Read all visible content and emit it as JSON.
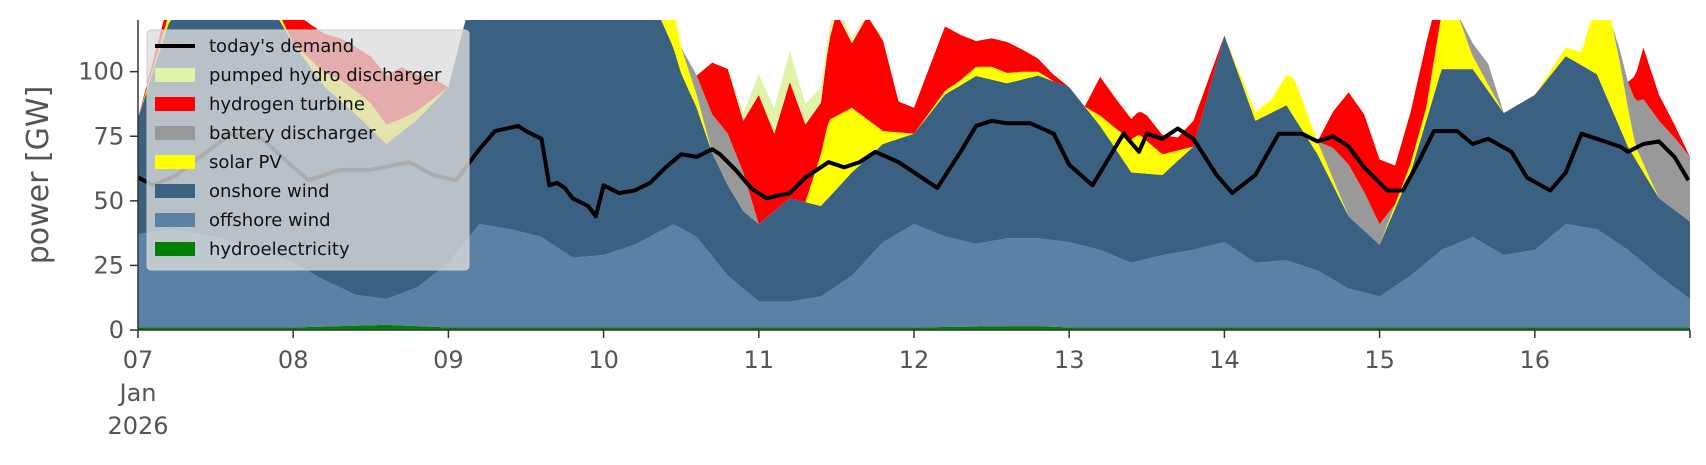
{
  "chart_data": {
    "type": "area",
    "ylabel": "power [GW]",
    "xlabel": "",
    "ylim": [
      0,
      120
    ],
    "yticks": [
      0,
      25,
      50,
      75,
      100
    ],
    "xlim": [
      7,
      17
    ],
    "xticks": [
      {
        "day": 7,
        "label": "07",
        "sub": [
          "Jan",
          "2026"
        ]
      },
      {
        "day": 8,
        "label": "08"
      },
      {
        "day": 9,
        "label": "09"
      },
      {
        "day": 10,
        "label": "10"
      },
      {
        "day": 11,
        "label": "11"
      },
      {
        "day": 12,
        "label": "12"
      },
      {
        "day": 13,
        "label": "13"
      },
      {
        "day": 14,
        "label": "14"
      },
      {
        "day": 15,
        "label": "15"
      },
      {
        "day": 16,
        "label": "16"
      }
    ],
    "legend_position": "top-left",
    "grid": false,
    "stack_order": [
      "hydroelectricity",
      "offshore wind",
      "onshore wind",
      "solar PV",
      "battery discharger",
      "hydrogen turbine",
      "pumped hydro discharger"
    ],
    "series": [
      {
        "name": "today's demand",
        "kind": "line",
        "color": "#000000",
        "x": [
          7.0,
          7.1,
          7.25,
          7.4,
          7.6,
          7.8,
          8.0,
          8.1,
          8.3,
          8.5,
          8.75,
          8.9,
          9.05,
          9.2,
          9.3,
          9.45,
          9.5,
          9.6,
          9.65,
          9.7,
          9.75,
          9.8,
          9.9,
          9.95,
          10.0,
          10.1,
          10.2,
          10.3,
          10.4,
          10.5,
          10.6,
          10.7,
          10.75,
          10.85,
          10.95,
          11.05,
          11.2,
          11.3,
          11.45,
          11.55,
          11.65,
          11.75,
          11.9,
          12.05,
          12.15,
          12.3,
          12.4,
          12.5,
          12.6,
          12.75,
          12.9,
          13.0,
          13.15,
          13.25,
          13.35,
          13.45,
          13.5,
          13.6,
          13.7,
          13.8,
          13.95,
          14.05,
          14.2,
          14.35,
          14.5,
          14.6,
          14.7,
          14.8,
          14.9,
          15.05,
          15.15,
          15.25,
          15.35,
          15.5,
          15.6,
          15.7,
          15.85,
          15.95,
          16.1,
          16.2,
          16.3,
          16.45,
          16.55,
          16.6,
          16.7,
          16.8,
          16.9,
          16.99
        ],
        "y": [
          59,
          56,
          60,
          67,
          76,
          74,
          63,
          58,
          62,
          62,
          65,
          60,
          58,
          70,
          77,
          79,
          77,
          74,
          56,
          57,
          55,
          51,
          48,
          44,
          56,
          53,
          54,
          57,
          63,
          68,
          67,
          70,
          68,
          62,
          55,
          51,
          53,
          59,
          65,
          63,
          65,
          69,
          65,
          59,
          55,
          69,
          79,
          81,
          80,
          80,
          76,
          64,
          56,
          66,
          76,
          69,
          76,
          74,
          78,
          74,
          60,
          53,
          60,
          76,
          76,
          73,
          75,
          71,
          63,
          54,
          54,
          65,
          77,
          77,
          72,
          74,
          69,
          59,
          54,
          61,
          76,
          73,
          71,
          69,
          72,
          73,
          67,
          58
        ]
      },
      {
        "name": "pumped hydro discharger",
        "color": "#dff4a8",
        "x": [
          7.0,
          7.3,
          7.6,
          7.8,
          8.0,
          10.5,
          10.8,
          10.9,
          11.0,
          11.1,
          11.2,
          11.3,
          11.45,
          11.6,
          11.8,
          17.0
        ],
        "y": [
          0,
          0,
          0,
          0,
          0,
          0,
          0,
          3,
          8,
          10,
          12,
          8,
          5,
          2,
          0,
          0
        ]
      },
      {
        "name": "hydrogen turbine",
        "color": "#ff0000",
        "x": [
          7.0,
          7.3,
          7.6,
          7.8,
          8.0,
          8.2,
          8.5,
          8.7,
          8.9,
          9.0,
          10.4,
          10.6,
          10.7,
          10.8,
          10.9,
          11.0,
          11.1,
          11.2,
          11.3,
          11.4,
          11.5,
          11.6,
          11.7,
          11.8,
          11.9,
          12.0,
          12.2,
          12.4,
          12.6,
          12.8,
          13.0,
          13.1,
          13.2,
          13.4,
          13.5,
          13.7,
          13.8,
          14.0,
          14.3,
          14.6,
          14.8,
          14.9,
          15.0,
          15.1,
          15.2,
          15.3,
          15.5,
          15.7,
          16.0,
          16.4,
          16.5,
          16.6,
          16.7,
          16.8,
          16.9,
          17.0
        ],
        "y": [
          0,
          8,
          12,
          10,
          12,
          15,
          18,
          20,
          8,
          0,
          0,
          0,
          20,
          25,
          20,
          50,
          30,
          45,
          30,
          20,
          40,
          25,
          40,
          35,
          12,
          10,
          25,
          10,
          12,
          5,
          0,
          0,
          15,
          8,
          10,
          5,
          10,
          0,
          0,
          0,
          28,
          30,
          25,
          15,
          20,
          25,
          0,
          0,
          0,
          0,
          0,
          0,
          20,
          10,
          5,
          0
        ]
      },
      {
        "name": "battery discharger",
        "color": "#999999",
        "x": [
          7.0,
          7.5,
          8.0,
          8.5,
          9.0,
          10.5,
          10.7,
          10.8,
          10.9,
          11.0,
          11.2,
          11.5,
          12.0,
          13.0,
          13.5,
          14.0,
          14.6,
          14.7,
          14.8,
          14.9,
          15.0,
          15.1,
          15.2,
          15.5,
          15.6,
          15.7,
          15.8,
          16.0,
          16.5,
          16.6,
          16.7,
          16.8,
          16.9,
          17.0
        ],
        "y": [
          0,
          0,
          0,
          0,
          0,
          0,
          15,
          20,
          15,
          0,
          0,
          0,
          0,
          0,
          0,
          0,
          0,
          12,
          20,
          15,
          8,
          0,
          0,
          0,
          5,
          8,
          0,
          0,
          0,
          10,
          25,
          30,
          28,
          25
        ]
      },
      {
        "name": "solar PV",
        "color": "#ffff00",
        "x": [
          7.0,
          7.3,
          7.5,
          7.8,
          8.0,
          8.3,
          8.5,
          8.7,
          9.0,
          10.3,
          10.4,
          10.5,
          10.6,
          10.7,
          11.0,
          11.3,
          11.45,
          11.6,
          11.8,
          12.0,
          12.3,
          12.5,
          12.7,
          12.9,
          13.1,
          13.3,
          13.45,
          13.6,
          13.8,
          14.0,
          14.3,
          14.45,
          14.6,
          14.8,
          15.0,
          15.3,
          15.45,
          15.6,
          15.8,
          16.0,
          16.3,
          16.45,
          16.55,
          16.65,
          16.8,
          17.0
        ],
        "y": [
          0,
          5,
          8,
          5,
          0,
          8,
          10,
          5,
          0,
          0,
          20,
          10,
          5,
          0,
          0,
          0,
          30,
          25,
          5,
          0,
          2,
          5,
          3,
          0,
          0,
          8,
          15,
          8,
          0,
          0,
          5,
          15,
          5,
          0,
          0,
          5,
          30,
          5,
          0,
          0,
          5,
          40,
          25,
          5,
          0,
          0
        ]
      },
      {
        "name": "onshore wind",
        "color": "#3b6182",
        "x": [
          7.0,
          7.2,
          7.4,
          7.6,
          7.8,
          8.0,
          8.2,
          8.4,
          8.6,
          8.8,
          9.0,
          9.2,
          9.4,
          9.6,
          9.8,
          10.0,
          10.2,
          10.35,
          10.5,
          10.7,
          10.9,
          11.0,
          11.2,
          11.4,
          11.6,
          11.8,
          12.0,
          12.2,
          12.4,
          12.6,
          12.8,
          13.0,
          13.2,
          13.4,
          13.6,
          13.8,
          14.0,
          14.2,
          14.4,
          14.6,
          14.8,
          15.0,
          15.2,
          15.4,
          15.6,
          15.8,
          16.0,
          16.2,
          16.4,
          16.6,
          16.8,
          17.0
        ],
        "y": [
          45,
          80,
          95,
          100,
          100,
          85,
          75,
          70,
          60,
          65,
          68,
          100,
          100,
          100,
          100,
          100,
          90,
          85,
          60,
          40,
          30,
          30,
          40,
          35,
          40,
          38,
          35,
          55,
          65,
          60,
          63,
          60,
          48,
          35,
          31,
          40,
          80,
          55,
          60,
          45,
          28,
          20,
          40,
          70,
          65,
          55,
          60,
          65,
          60,
          40,
          30,
          30
        ]
      },
      {
        "name": "offshore wind",
        "color": "#5b81a5",
        "x": [
          7.0,
          7.2,
          7.5,
          7.8,
          8.0,
          8.2,
          8.4,
          8.6,
          8.8,
          9.0,
          9.2,
          9.4,
          9.6,
          9.8,
          10.0,
          10.2,
          10.45,
          10.6,
          10.8,
          11.0,
          11.2,
          11.4,
          11.6,
          11.8,
          12.0,
          12.2,
          12.4,
          12.6,
          12.8,
          13.0,
          13.2,
          13.4,
          13.6,
          13.8,
          14.0,
          14.2,
          14.4,
          14.6,
          14.8,
          15.0,
          15.2,
          15.4,
          15.6,
          15.8,
          16.0,
          16.2,
          16.4,
          16.6,
          16.8,
          17.0
        ],
        "y": [
          36,
          38,
          35,
          30,
          25,
          18,
          12,
          10,
          15,
          25,
          40,
          38,
          35,
          27,
          28,
          32,
          40,
          35,
          20,
          10,
          10,
          12,
          20,
          33,
          40,
          35,
          32,
          34,
          34,
          33,
          30,
          25,
          28,
          30,
          33,
          25,
          26,
          22,
          15,
          12,
          20,
          30,
          35,
          28,
          30,
          40,
          38,
          30,
          20,
          11
        ]
      },
      {
        "name": "hydroelectricity",
        "color": "#008000",
        "x": [
          7.0,
          8.0,
          8.3,
          8.6,
          8.8,
          9.0,
          10.0,
          11.0,
          12.0,
          12.6,
          12.8,
          13.0,
          14.0,
          15.0,
          16.0,
          17.0
        ],
        "y": [
          1.0,
          1.0,
          1.5,
          2.0,
          1.5,
          1.0,
          1.0,
          1.0,
          1.0,
          1.5,
          1.5,
          1.0,
          1.0,
          1.0,
          1.0,
          1.0
        ]
      }
    ]
  }
}
